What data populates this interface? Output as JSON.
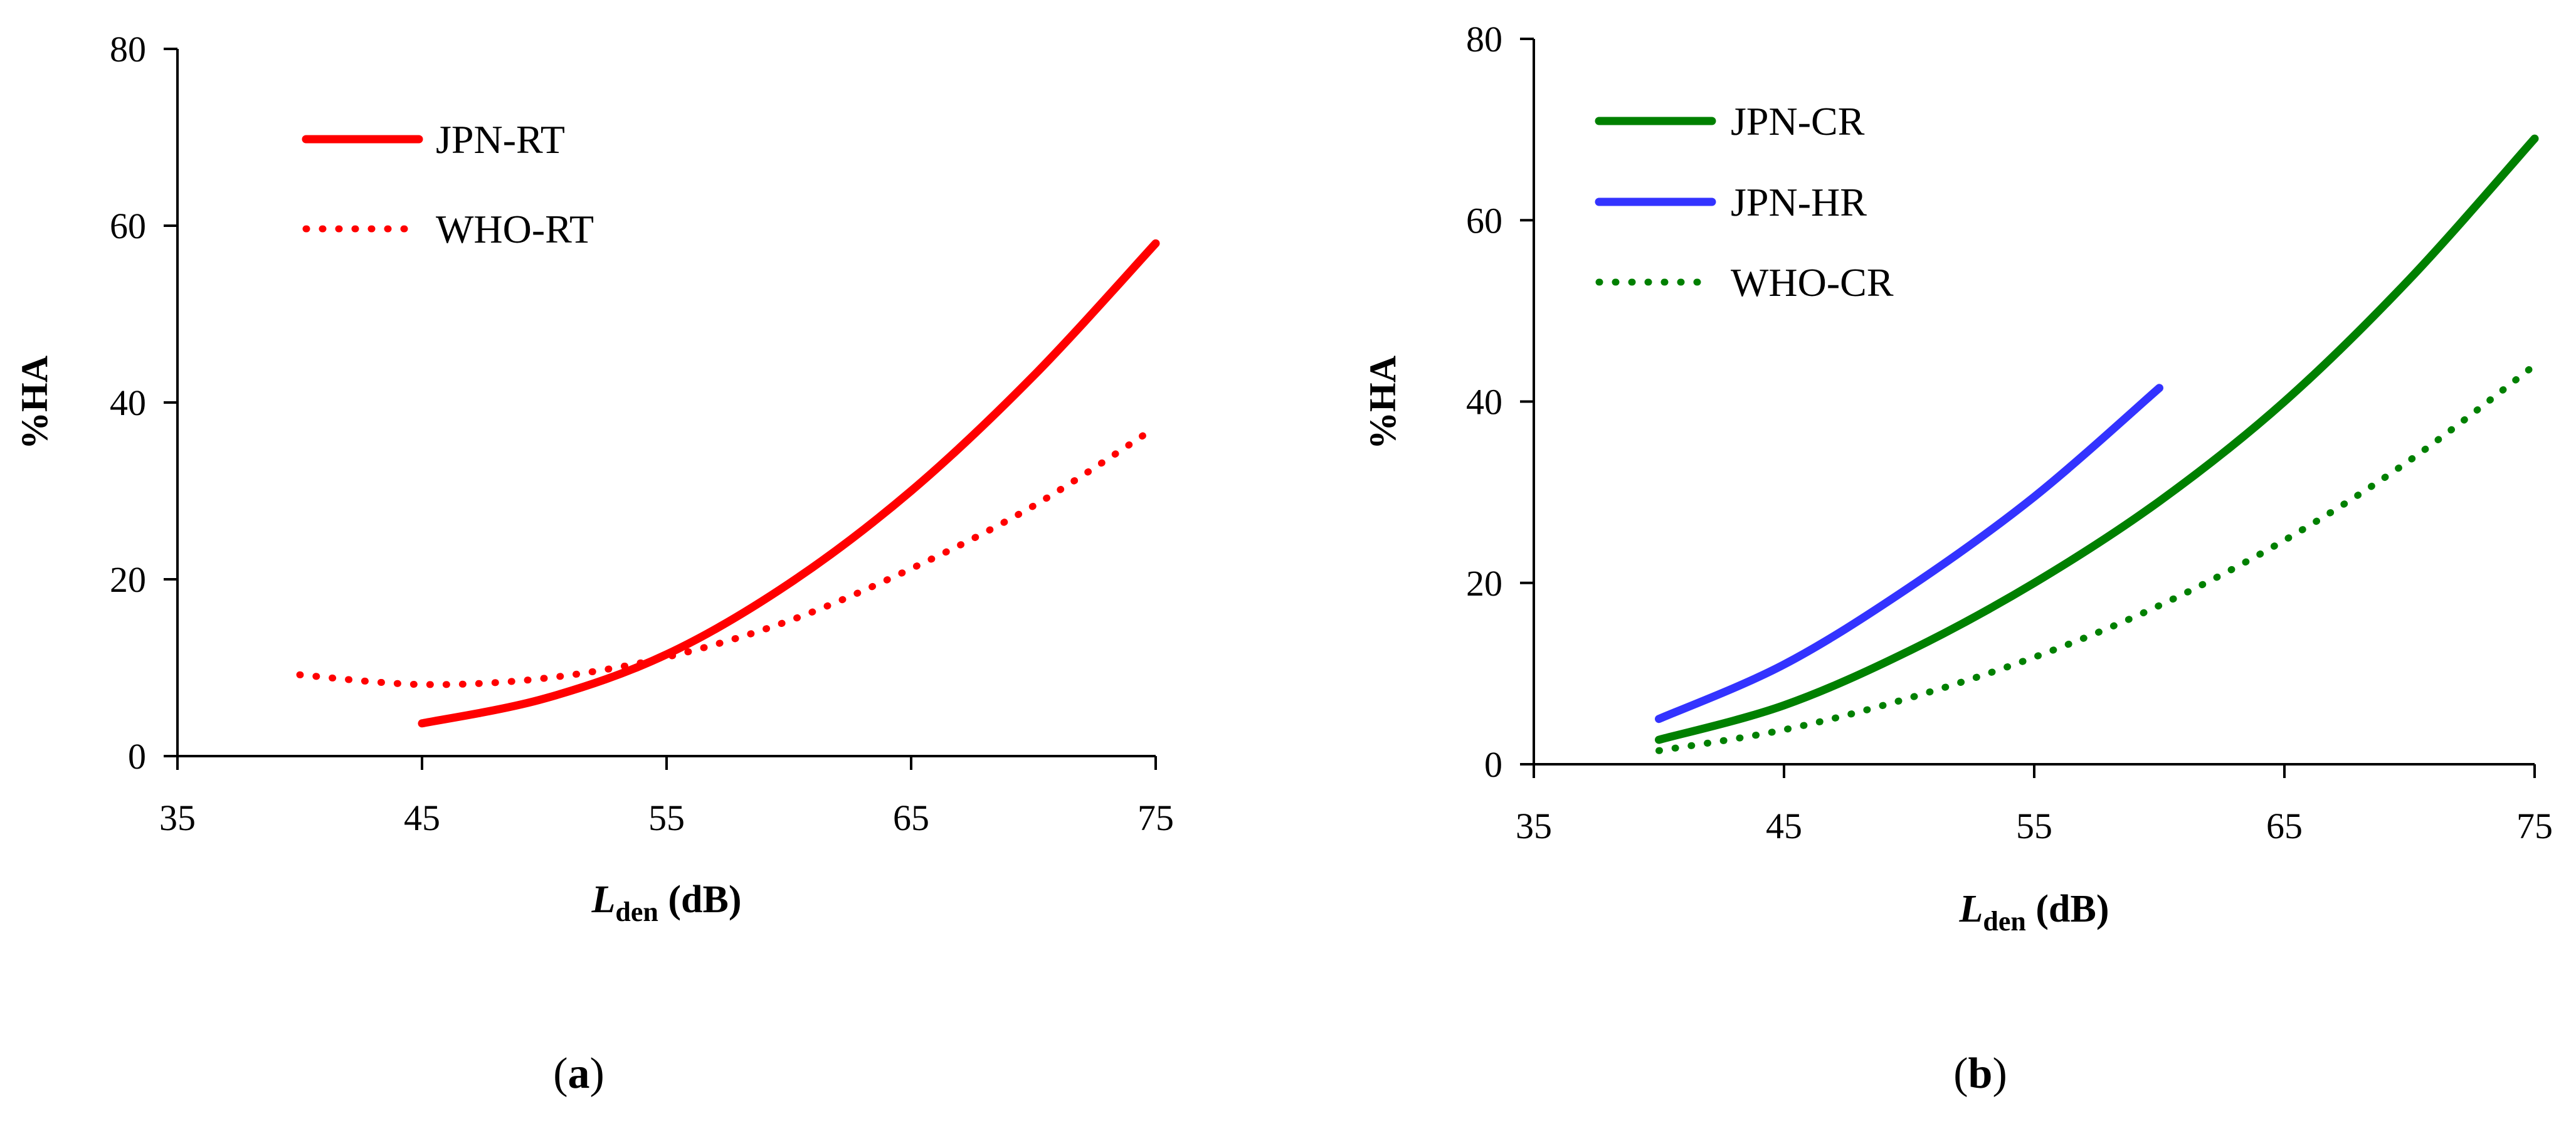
{
  "chart_data": [
    {
      "panel": "a",
      "type": "line",
      "xlabel_main": "L",
      "xlabel_sub": "den",
      "xlabel_unit": "(dB)",
      "ylabel": "%HA",
      "xlim": [
        35,
        75
      ],
      "ylim": [
        0,
        80
      ],
      "xticks": [
        35,
        45,
        55,
        65,
        75
      ],
      "yticks": [
        0,
        20,
        40,
        60,
        80
      ],
      "grid": false,
      "legend_position": "top-left",
      "series": [
        {
          "name": "JPN-RT",
          "color": "#ff0000",
          "style": "solid",
          "x": [
            45,
            50,
            55,
            60,
            65,
            70,
            75
          ],
          "y": [
            3.7,
            6.5,
            11.5,
            19.5,
            30,
            43,
            58
          ]
        },
        {
          "name": "WHO-RT",
          "color": "#ff0000",
          "style": "dotted",
          "x": [
            40,
            45,
            50,
            55,
            60,
            65,
            70,
            75
          ],
          "y": [
            9.2,
            8.1,
            8.8,
            11.2,
            15.3,
            21.2,
            28.3,
            37.2
          ]
        }
      ]
    },
    {
      "panel": "b",
      "type": "line",
      "xlabel_main": "L",
      "xlabel_sub": "den",
      "xlabel_unit": "(dB)",
      "ylabel": "%HA",
      "xlim": [
        35,
        75
      ],
      "ylim": [
        0,
        80
      ],
      "xticks": [
        35,
        45,
        55,
        65,
        75
      ],
      "yticks": [
        0,
        20,
        40,
        60,
        80
      ],
      "grid": false,
      "legend_position": "top-left",
      "series": [
        {
          "name": "JPN-CR",
          "color": "#008000",
          "style": "solid",
          "x": [
            40,
            45,
            50,
            55,
            60,
            65,
            70,
            75
          ],
          "y": [
            2.7,
            6.5,
            12.5,
            20,
            29,
            40,
            53.5,
            69
          ]
        },
        {
          "name": "JPN-HR",
          "color": "#3333ff",
          "style": "solid",
          "x": [
            40,
            45,
            50,
            55,
            60
          ],
          "y": [
            5,
            11,
            19.5,
            29.5,
            41.5
          ]
        },
        {
          "name": "WHO-CR",
          "color": "#008000",
          "style": "dotted",
          "x": [
            40,
            45,
            50,
            55,
            60,
            65,
            70,
            75
          ],
          "y": [
            1.5,
            3.8,
            7.3,
            11.8,
            17.5,
            24.7,
            33.5,
            44
          ]
        }
      ]
    }
  ],
  "panel_labels": [
    "a",
    "b"
  ]
}
